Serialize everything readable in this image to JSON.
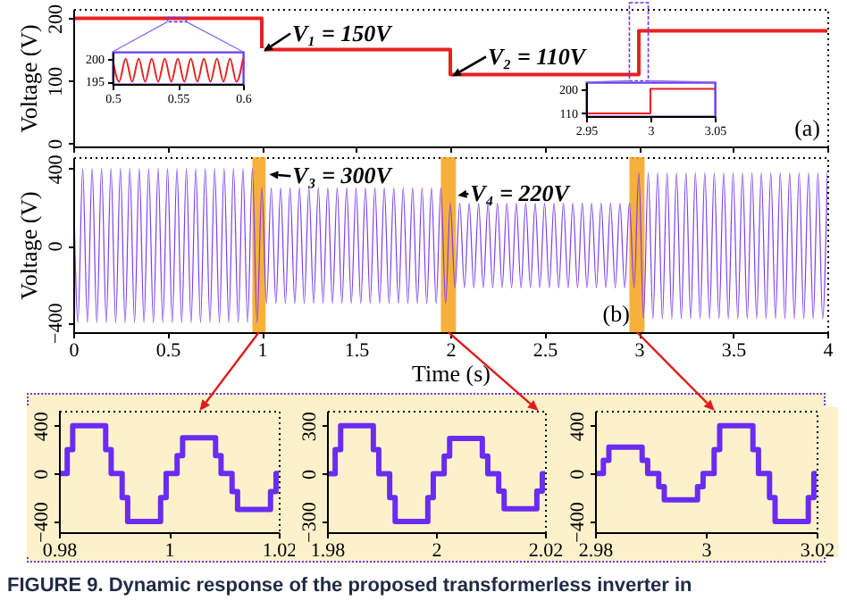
{
  "chart_data": [
    {
      "type": "step",
      "ylabel": "Voltage (V)",
      "x": [
        0,
        1,
        2,
        3,
        4
      ],
      "values": [
        200,
        150,
        110,
        180,
        180
      ],
      "color": "#e8211f",
      "xlim": [
        0,
        4
      ],
      "ylim": [
        -5,
        215
      ],
      "xticks": [
        0,
        0.5,
        1,
        1.5,
        2,
        2.5,
        3,
        3.5,
        4
      ],
      "yticks": [
        0,
        100,
        200
      ],
      "tick_labels": "y",
      "annotations": [
        {
          "text": "V₁ = 150V",
          "x": 1,
          "y": 150
        },
        {
          "text": "V₂ = 110V",
          "x": 2,
          "y": 110
        },
        "(a)"
      ]
    },
    {
      "type": "line",
      "x": [
        0.5,
        0.505,
        0.51,
        0.515,
        0.52,
        0.525,
        0.53,
        0.535,
        0.54,
        0.545,
        0.55,
        0.555,
        0.56,
        0.565,
        0.57,
        0.575,
        0.58,
        0.585,
        0.59,
        0.595,
        0.6
      ],
      "values": [
        200,
        195,
        200,
        195,
        200,
        195,
        200,
        195,
        200,
        195,
        200,
        195,
        200,
        195,
        200,
        195,
        200,
        195,
        200,
        195,
        200
      ],
      "color": "#e8211f",
      "xlim": [
        0.5,
        0.6
      ],
      "ylim": [
        194.5,
        201.5
      ],
      "xticks": [
        0.5,
        0.55,
        0.6
      ],
      "yticks": [
        195,
        200
      ]
    },
    {
      "type": "step",
      "x": [
        2.95,
        3,
        3.05
      ],
      "values": [
        110,
        200,
        200
      ],
      "color": "#e8211f",
      "xlim": [
        2.95,
        3.05
      ],
      "ylim": [
        100,
        225
      ],
      "xticks": [
        2.95,
        3,
        3.05
      ],
      "yticks": [
        110,
        200
      ]
    },
    {
      "type": "line",
      "xlabel": "Time (s)",
      "ylabel": "Voltage (V)",
      "color": "#7b3df5",
      "xlim": [
        0,
        4
      ],
      "ylim": [
        -450,
        460
      ],
      "xticks": [
        0,
        0.5,
        1,
        1.5,
        2,
        2.5,
        3,
        3.5,
        4
      ],
      "yticks": [
        -400,
        0,
        400
      ],
      "x": [
        0,
        0.025,
        0.05,
        0.075,
        0.1,
        0.125,
        0.15,
        0.175,
        0.2,
        0.225,
        0.25,
        0.275,
        0.3,
        0.325,
        0.35,
        0.375,
        0.4,
        0.425,
        0.45,
        0.475,
        0.5,
        0.525,
        0.55,
        0.575,
        0.6,
        0.625,
        0.65,
        0.675,
        0.7,
        0.725,
        0.75,
        0.775,
        0.8,
        0.825,
        0.85,
        0.875,
        0.9,
        0.925,
        0.95,
        0.975,
        1,
        1.025,
        1.05,
        1.075,
        1.1,
        1.125,
        1.15,
        1.175,
        1.2,
        1.225,
        1.25,
        1.275,
        1.3,
        1.325,
        1.35,
        1.375,
        1.4,
        1.425,
        1.45,
        1.475,
        1.5,
        1.525,
        1.55,
        1.575,
        1.6,
        1.625,
        1.65,
        1.675,
        1.7,
        1.725,
        1.75,
        1.775,
        1.8,
        1.825,
        1.85,
        1.875,
        1.9,
        1.925,
        1.95,
        1.975,
        2,
        2.025,
        2.05,
        2.075,
        2.1,
        2.125,
        2.15,
        2.175,
        2.2,
        2.225,
        2.25,
        2.275,
        2.3,
        2.325,
        2.35,
        2.375,
        2.4,
        2.425,
        2.45,
        2.475,
        2.5,
        2.525,
        2.55,
        2.575,
        2.6,
        2.625,
        2.65,
        2.675,
        2.7,
        2.725,
        2.75,
        2.775,
        2.8,
        2.825,
        2.85,
        2.875,
        2.9,
        2.925,
        2.95,
        2.975,
        3,
        3.025,
        3.05,
        3.075,
        3.1,
        3.125,
        3.15,
        3.175,
        3.2,
        3.225,
        3.25,
        3.275,
        3.3,
        3.325,
        3.35,
        3.375,
        3.4,
        3.425,
        3.45,
        3.475,
        3.5,
        3.525,
        3.55,
        3.575,
        3.6,
        3.625,
        3.65,
        3.675,
        3.7,
        3.725,
        3.75,
        3.775,
        3.8,
        3.825,
        3.85,
        3.875,
        3.9,
        3.925,
        3.95,
        3.975,
        4
      ],
      "values": [
        400,
        -400,
        400,
        -400,
        400,
        -400,
        400,
        -400,
        400,
        -400,
        400,
        -400,
        400,
        -400,
        400,
        -400,
        400,
        -400,
        400,
        -400,
        400,
        -400,
        400,
        -400,
        400,
        -400,
        400,
        -400,
        400,
        -400,
        400,
        -400,
        400,
        -400,
        400,
        -400,
        400,
        -400,
        400,
        -400,
        300,
        -300,
        300,
        -300,
        300,
        -300,
        300,
        -300,
        300,
        -300,
        300,
        -300,
        300,
        -300,
        300,
        -300,
        300,
        -300,
        300,
        -300,
        300,
        -300,
        300,
        -300,
        300,
        -300,
        300,
        -300,
        300,
        -300,
        300,
        -300,
        300,
        -300,
        300,
        -300,
        300,
        -300,
        300,
        -300,
        220,
        -220,
        220,
        -220,
        220,
        -220,
        220,
        -220,
        220,
        -220,
        220,
        -220,
        220,
        -220,
        220,
        -220,
        220,
        -220,
        220,
        -220,
        220,
        -220,
        220,
        -220,
        220,
        -220,
        220,
        -220,
        220,
        -220,
        220,
        -220,
        220,
        -220,
        220,
        -220,
        220,
        -220,
        220,
        -220,
        380,
        -380,
        380,
        -380,
        380,
        -380,
        380,
        -380,
        380,
        -380,
        380,
        -380,
        380,
        -380,
        380,
        -380,
        380,
        -380,
        380,
        -380,
        380,
        -380,
        380,
        -380,
        380,
        -380,
        380,
        -380,
        380,
        -380,
        380,
        -380,
        380,
        -380,
        380,
        -380,
        380,
        -380,
        380,
        -380,
        380
      ],
      "bands": [
        {
          "axis": "x",
          "from": 0.95,
          "to": 1.02,
          "color": "#f7a21b"
        },
        {
          "axis": "x",
          "from": 1.95,
          "to": 2.03,
          "color": "#f7a21b"
        },
        {
          "axis": "x",
          "from": 2.95,
          "to": 3.03,
          "color": "#f7a21b"
        }
      ],
      "annotations": [
        {
          "text": "V₃ = 300V",
          "x": 1.03,
          "y": 380
        },
        {
          "text": "V₄ = 220V",
          "x": 2.03,
          "y": 270
        },
        "(b)"
      ]
    },
    {
      "type": "step",
      "color": "#6a2cf0",
      "xlim": [
        0.98,
        1.02
      ],
      "ylim": [
        -490,
        525
      ],
      "xticks": [
        0.98,
        1,
        1.02
      ],
      "yticks": [
        -400,
        0,
        400
      ],
      "x": [
        0.98,
        0.9815,
        0.9825,
        0.9885,
        0.9895,
        0.9915,
        0.9925,
        0.9985,
        0.9995,
        1.0015,
        1.0025,
        1.0085,
        1.0095,
        1.0115,
        1.0125,
        1.0185,
        1.0195,
        1.02
      ],
      "values": [
        0,
        200,
        400,
        200,
        0,
        -200,
        -400,
        -200,
        0,
        150,
        300,
        150,
        0,
        -150,
        -300,
        -150,
        0,
        0
      ]
    },
    {
      "type": "step",
      "color": "#6a2cf0",
      "xlim": [
        1.98,
        2.02
      ],
      "ylim": [
        -367,
        394
      ],
      "xticks": [
        1.98,
        2,
        2.02
      ],
      "yticks": [
        -300,
        0,
        300
      ],
      "x": [
        1.98,
        1.9815,
        1.9825,
        1.9885,
        1.9895,
        1.9915,
        1.9925,
        1.9985,
        1.9995,
        2.0015,
        2.0025,
        2.0085,
        2.0095,
        2.0115,
        2.0125,
        2.0185,
        2.0195,
        2.02
      ],
      "values": [
        0,
        150,
        300,
        150,
        0,
        -150,
        -300,
        -150,
        0,
        110,
        220,
        110,
        0,
        -110,
        -220,
        -110,
        0,
        0
      ]
    },
    {
      "type": "step",
      "color": "#6a2cf0",
      "xlim": [
        2.98,
        3.02
      ],
      "ylim": [
        -490,
        525
      ],
      "xticks": [
        2.98,
        3,
        3.02
      ],
      "yticks": [
        -400,
        0,
        400
      ],
      "x": [
        2.98,
        2.9815,
        2.9825,
        2.9885,
        2.9895,
        2.9915,
        2.9925,
        2.9985,
        2.9995,
        3.0015,
        3.0025,
        3.0085,
        3.0095,
        3.0115,
        3.0125,
        3.0185,
        3.0195,
        3.02
      ],
      "values": [
        0,
        110,
        220,
        110,
        0,
        -110,
        -220,
        -110,
        0,
        200,
        400,
        200,
        0,
        -200,
        -400,
        -200,
        0,
        0
      ]
    },
    {
      "type": "other",
      "annotations": [
        "FIGURE 9. Dynamic response of the proposed transformerless inverter in"
      ]
    }
  ]
}
